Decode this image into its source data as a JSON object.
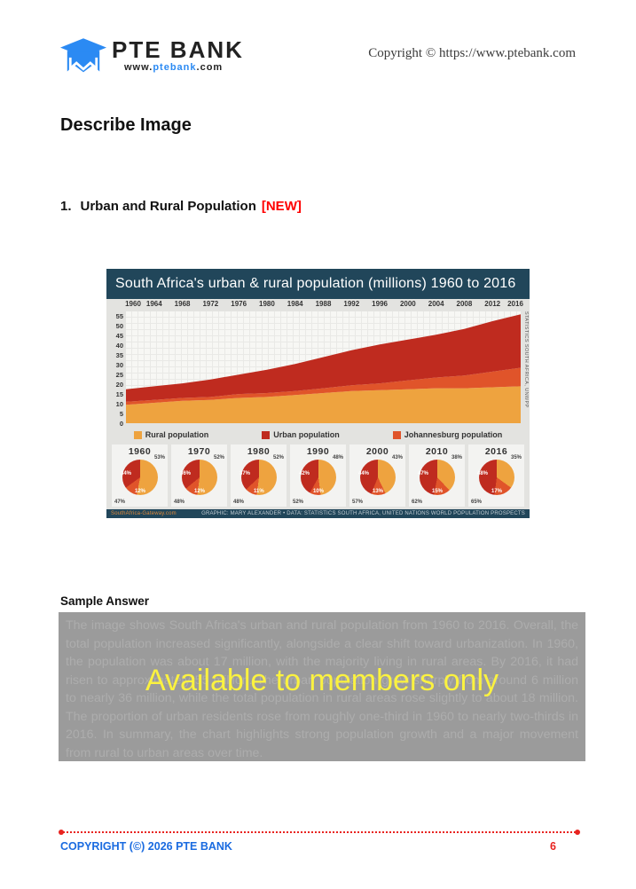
{
  "header": {
    "brand": "PTE BANK",
    "site_prefix": "www.",
    "site_name": "ptebank",
    "site_suffix": ".com",
    "copyright": "Copyright © https://www.ptebank.com",
    "logo_color": "#2b8af3"
  },
  "page_title": "Describe Image",
  "item": {
    "number": "1.",
    "title": "Urban and Rural Population",
    "badge": "[NEW]",
    "badge_color": "#ff0000"
  },
  "chart_data": [
    {
      "type": "area",
      "stacked": true,
      "title": "South Africa's urban & rural population (millions) 1960 to 2016",
      "x": [
        1960,
        1964,
        1968,
        1972,
        1976,
        1980,
        1984,
        1988,
        1992,
        1996,
        2000,
        2004,
        2008,
        2012,
        2016
      ],
      "series": [
        {
          "name": "Rural population",
          "color": "#eea33f",
          "values": [
            9.5,
            10.5,
            11.5,
            12,
            13,
            13.5,
            14.5,
            15.5,
            16.5,
            17,
            17.5,
            18,
            18,
            18.5,
            19
          ]
        },
        {
          "name": "Johannesburg population",
          "color": "#e0542a",
          "values": [
            1.5,
            1.5,
            1.5,
            1.5,
            2,
            2,
            2,
            2.5,
            3,
            3.5,
            4.5,
            5.5,
            6.5,
            8,
            9.5
          ]
        },
        {
          "name": "Urban population",
          "color": "#bf2b1f",
          "values": [
            6.5,
            7,
            7.5,
            9,
            10,
            12,
            14,
            16,
            18,
            20,
            21,
            22,
            24,
            26,
            27.5
          ]
        }
      ],
      "ylim": [
        0,
        57.5
      ],
      "yticks": [
        0,
        5,
        10,
        15,
        20,
        25,
        30,
        35,
        40,
        45,
        50,
        55
      ],
      "grid": true,
      "legend_position": "bottom",
      "legend": [
        {
          "label": "Rural population",
          "color": "#eea33f"
        },
        {
          "label": "Urban population",
          "color": "#bf2b1f"
        },
        {
          "label": "Johannesburg population",
          "color": "#e0542a"
        }
      ],
      "right_caption": "STATISTICS SOUTH AFRICA, UNWPP",
      "source_left": "SouthAfrica-Gateway.com",
      "source_right": "GRAPHIC: MARY ALEXANDER • DATA: STATISTICS SOUTH AFRICA, UNITED NATIONS WORLD POPULATION PROSPECTS"
    },
    {
      "type": "pie",
      "colors": {
        "rural": "#eea33f",
        "urban": "#bf2b1f",
        "johannesburg": "#e0542a"
      },
      "pies": [
        {
          "year": "1960",
          "rural_pct": 53,
          "urban_pct": 34,
          "johannesburg_pct": 12,
          "urban_total_pct": 47
        },
        {
          "year": "1970",
          "rural_pct": 52,
          "urban_pct": 36,
          "johannesburg_pct": 12,
          "urban_total_pct": 48
        },
        {
          "year": "1980",
          "rural_pct": 52,
          "urban_pct": 37,
          "johannesburg_pct": 11,
          "urban_total_pct": 48
        },
        {
          "year": "1990",
          "rural_pct": 48,
          "urban_pct": 42,
          "johannesburg_pct": 10,
          "urban_total_pct": 52
        },
        {
          "year": "2000",
          "rural_pct": 43,
          "urban_pct": 44,
          "johannesburg_pct": 13,
          "urban_total_pct": 57
        },
        {
          "year": "2010",
          "rural_pct": 38,
          "urban_pct": 47,
          "johannesburg_pct": 15,
          "urban_total_pct": 62
        },
        {
          "year": "2016",
          "rural_pct": 35,
          "urban_pct": 48,
          "johannesburg_pct": 17,
          "urban_total_pct": 65
        }
      ]
    }
  ],
  "sample": {
    "heading": "Sample Answer",
    "paragraph": "The image shows South Africa's urban and rural population from 1960 to 2016. Overall, the total population increased significantly, alongside a clear shift toward urbanization. In 1960, the population was about 17 million, with the majority living in rural areas. By 2016, it had risen to approximately 55 million. The urban population grew sharply from around 6 million to nearly 36 million, while the total population in rural areas rose slightly to about 18 million. The proportion of urban residents rose from roughly one-third in 1960 to nearly two-thirds in 2016. In summary, the chart highlights strong population growth and a major movement from rural to urban areas over time.",
    "overlay": "Available to members only",
    "overlay_color": "#fbf23f"
  },
  "footer": {
    "copyright": "COPYRIGHT (©) 2026 PTE BANK",
    "page_number": "6",
    "accent_blue": "#1a6be0",
    "accent_red": "#e8231f"
  }
}
